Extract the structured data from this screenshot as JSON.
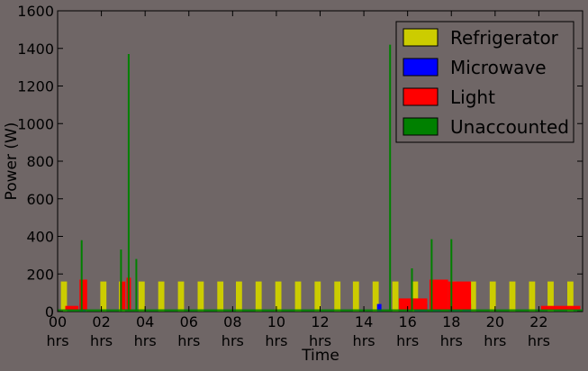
{
  "chart_data": {
    "type": "area",
    "stacked": true,
    "xlabel": "Time",
    "ylabel": "Power (W)",
    "title": "",
    "x_unit": "hours",
    "xlim": [
      0,
      24
    ],
    "ylim": [
      0,
      1600
    ],
    "yticks": [
      0,
      200,
      400,
      600,
      800,
      1000,
      1200,
      1400,
      1600
    ],
    "xticks": [
      {
        "value": 0,
        "label": "00",
        "sublabel": "hrs"
      },
      {
        "value": 2,
        "label": "02",
        "sublabel": "hrs"
      },
      {
        "value": 4,
        "label": "04",
        "sublabel": "hrs"
      },
      {
        "value": 6,
        "label": "06",
        "sublabel": "hrs"
      },
      {
        "value": 8,
        "label": "08",
        "sublabel": "hrs"
      },
      {
        "value": 10,
        "label": "10",
        "sublabel": "hrs"
      },
      {
        "value": 12,
        "label": "12",
        "sublabel": "hrs"
      },
      {
        "value": 14,
        "label": "14",
        "sublabel": "hrs"
      },
      {
        "value": 16,
        "label": "16",
        "sublabel": "hrs"
      },
      {
        "value": 18,
        "label": "18",
        "sublabel": "hrs"
      },
      {
        "value": 20,
        "label": "20",
        "sublabel": "hrs"
      },
      {
        "value": 22,
        "label": "22",
        "sublabel": "hrs"
      }
    ],
    "legend_position": "top-right",
    "series": [
      {
        "name": "Refrigerator",
        "color": "#cccc00",
        "pulse_hours": [
          0.15,
          1.05,
          1.95,
          2.8,
          3.7,
          4.6,
          5.5,
          6.4,
          7.3,
          8.15,
          9.05,
          9.95,
          10.85,
          11.75,
          12.65,
          13.5,
          14.4,
          15.3,
          16.2,
          17.1,
          17.95,
          18.85,
          19.75,
          20.65,
          21.55,
          22.4,
          23.3
        ],
        "pulse_width_hours": 0.28,
        "pulse_power": 160,
        "baseline_power": 0
      },
      {
        "name": "Microwave",
        "color": "#0000ff",
        "events": [
          {
            "start": 1.0,
            "end": 1.3,
            "power": 40
          },
          {
            "start": 14.6,
            "end": 14.8,
            "power": 40
          },
          {
            "start": 16.3,
            "end": 16.9,
            "power": 40
          },
          {
            "start": 17.0,
            "end": 17.5,
            "power": 40
          },
          {
            "start": 17.9,
            "end": 18.4,
            "power": 40
          },
          {
            "start": 18.5,
            "end": 18.9,
            "power": 40
          }
        ]
      },
      {
        "name": "Light",
        "color": "#ff0000",
        "events": [
          {
            "start": 0.35,
            "end": 0.95,
            "power": 20
          },
          {
            "start": 1.0,
            "end": 1.35,
            "power": 160
          },
          {
            "start": 2.85,
            "end": 3.1,
            "power": 150
          },
          {
            "start": 3.15,
            "end": 3.35,
            "power": 170
          },
          {
            "start": 15.6,
            "end": 16.9,
            "power": 60
          },
          {
            "start": 17.0,
            "end": 17.85,
            "power": 160
          },
          {
            "start": 17.85,
            "end": 18.9,
            "power": 150
          },
          {
            "start": 22.1,
            "end": 23.9,
            "power": 20
          }
        ]
      },
      {
        "name": "Unaccounted",
        "color": "#008000",
        "baseline_power": 12,
        "spikes": [
          {
            "hour": 3.25,
            "power": 1370
          },
          {
            "hour": 3.6,
            "power": 280
          },
          {
            "hour": 15.2,
            "power": 1420
          },
          {
            "hour": 1.1,
            "power": 380
          },
          {
            "hour": 2.9,
            "power": 330
          },
          {
            "hour": 16.2,
            "power": 230
          },
          {
            "hour": 17.1,
            "power": 385
          },
          {
            "hour": 18.0,
            "power": 385
          }
        ]
      }
    ]
  }
}
